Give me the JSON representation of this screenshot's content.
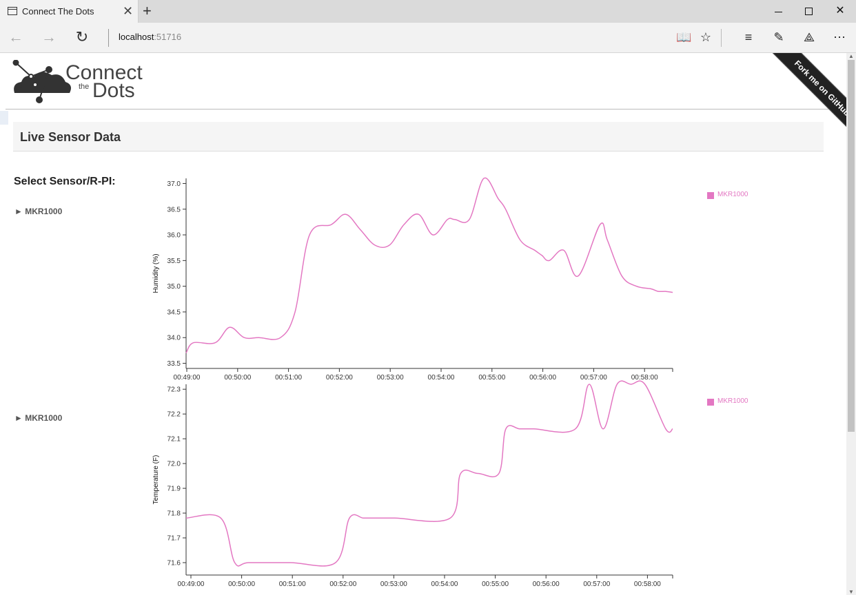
{
  "browser": {
    "tab_title": "Connect The Dots",
    "address_host": "localhost",
    "address_port": ":51716"
  },
  "header": {
    "logo_connect": "Connect",
    "logo_the": "the",
    "logo_dots": "Dots",
    "fork_ribbon": "Fork me on GitHub"
  },
  "panel": {
    "title": "Live Sensor Data"
  },
  "sidebar": {
    "label": "Select Sensor/R-PI:",
    "items": [
      {
        "label": "MKR1000"
      },
      {
        "label": "MKR1000"
      }
    ]
  },
  "colors": {
    "series": "#e377c2",
    "axis": "#333333"
  },
  "chart_data": [
    {
      "type": "line",
      "ylabel": "Humidity (%)",
      "ylim": [
        33.4,
        37.1
      ],
      "yticks": [
        "33.5",
        "34.0",
        "34.5",
        "35.0",
        "35.5",
        "36.0",
        "36.5",
        "37.0"
      ],
      "xticks": [
        "00:49:00",
        "00:50:00",
        "00:51:00",
        "00:52:00",
        "00:53:00",
        "00:54:00",
        "00:55:00",
        "00:56:00",
        "00:57:00",
        "00:58:00"
      ],
      "series": [
        {
          "name": "MKR1000",
          "x": [
            0,
            10,
            40,
            60,
            80,
            100,
            130,
            150,
            170,
            200,
            220,
            240,
            260,
            280,
            300,
            320,
            340,
            360,
            370,
            390,
            410,
            430,
            440,
            460,
            480,
            490,
            500,
            520,
            540,
            570,
            580,
            600,
            620,
            640,
            650,
            660,
            670
          ],
          "values": [
            33.7,
            33.9,
            33.9,
            34.2,
            34.0,
            34.0,
            34.0,
            34.5,
            36.0,
            36.2,
            36.4,
            36.1,
            35.8,
            35.8,
            36.2,
            36.4,
            36.0,
            36.3,
            36.3,
            36.3,
            37.1,
            36.7,
            36.5,
            35.9,
            35.7,
            35.6,
            35.5,
            35.7,
            35.2,
            36.2,
            35.9,
            35.2,
            35.0,
            34.95,
            34.9,
            34.9,
            34.88
          ]
        }
      ]
    },
    {
      "type": "line",
      "ylabel": "Temperature (F)",
      "ylim": [
        71.55,
        72.32
      ],
      "yticks": [
        "71.6",
        "71.7",
        "71.8",
        "71.9",
        "72.0",
        "72.1",
        "72.2",
        "72.3"
      ],
      "xticks": [
        "00:49:00",
        "00:50:00",
        "00:51:00",
        "00:52:00",
        "00:53:00",
        "00:54:00",
        "00:55:00",
        "00:56:00",
        "00:57:00",
        "00:58:00"
      ],
      "series": [
        {
          "name": "MKR1000",
          "x": [
            0,
            50,
            70,
            90,
            150,
            215,
            235,
            255,
            270,
            300,
            380,
            395,
            420,
            450,
            460,
            480,
            500,
            560,
            580,
            600,
            620,
            640,
            660,
            690,
            700
          ],
          "values": [
            71.78,
            71.78,
            71.6,
            71.6,
            71.6,
            71.6,
            71.78,
            71.78,
            71.78,
            71.78,
            71.78,
            71.96,
            71.96,
            71.96,
            72.14,
            72.14,
            72.14,
            72.14,
            72.32,
            72.14,
            72.32,
            72.32,
            72.32,
            72.14,
            72.14
          ]
        }
      ]
    }
  ]
}
